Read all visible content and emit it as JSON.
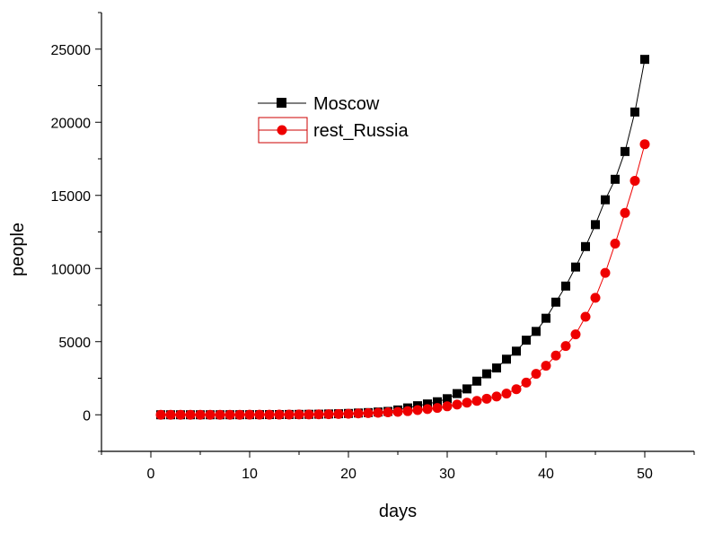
{
  "chart_data": {
    "type": "line",
    "title": "",
    "xlabel": "days",
    "ylabel": "people",
    "xlim": [
      -5,
      55
    ],
    "ylim": [
      -2500,
      27500
    ],
    "xticks": [
      0,
      10,
      20,
      30,
      40,
      50
    ],
    "yticks": [
      0,
      5000,
      10000,
      15000,
      20000,
      25000
    ],
    "grid": false,
    "legend_position": "upper-left-center",
    "x": [
      1,
      2,
      3,
      4,
      5,
      6,
      7,
      8,
      9,
      10,
      11,
      12,
      13,
      14,
      15,
      16,
      17,
      18,
      19,
      20,
      21,
      22,
      23,
      24,
      25,
      26,
      27,
      28,
      29,
      30,
      31,
      32,
      33,
      34,
      35,
      36,
      37,
      38,
      39,
      40,
      41,
      42,
      43,
      44,
      45,
      46,
      47,
      48,
      49,
      50
    ],
    "series": [
      {
        "name": "Moscow",
        "color": "#000000",
        "marker": "square",
        "values": [
          1,
          1,
          1,
          1,
          1,
          1,
          2,
          3,
          5,
          7,
          9,
          12,
          16,
          20,
          25,
          31,
          40,
          55,
          70,
          90,
          120,
          150,
          190,
          230,
          330,
          470,
          620,
          740,
          890,
          1100,
          1450,
          1770,
          2300,
          2800,
          3200,
          3800,
          4350,
          5100,
          5700,
          6600,
          7700,
          8800,
          10100,
          11500,
          13000,
          14700,
          16100,
          18000,
          20700,
          24300
        ]
      },
      {
        "name": "rest_Russia",
        "color": "#ee0000",
        "marker": "circle",
        "values": [
          1,
          1,
          1,
          1,
          1,
          1,
          1,
          2,
          3,
          5,
          7,
          9,
          12,
          15,
          20,
          25,
          30,
          40,
          55,
          70,
          90,
          115,
          140,
          170,
          200,
          250,
          320,
          390,
          470,
          580,
          700,
          830,
          950,
          1100,
          1250,
          1450,
          1750,
          2200,
          2800,
          3350,
          4050,
          4700,
          5500,
          6700,
          8000,
          9700,
          11700,
          13800,
          16000,
          18500
        ]
      }
    ]
  }
}
